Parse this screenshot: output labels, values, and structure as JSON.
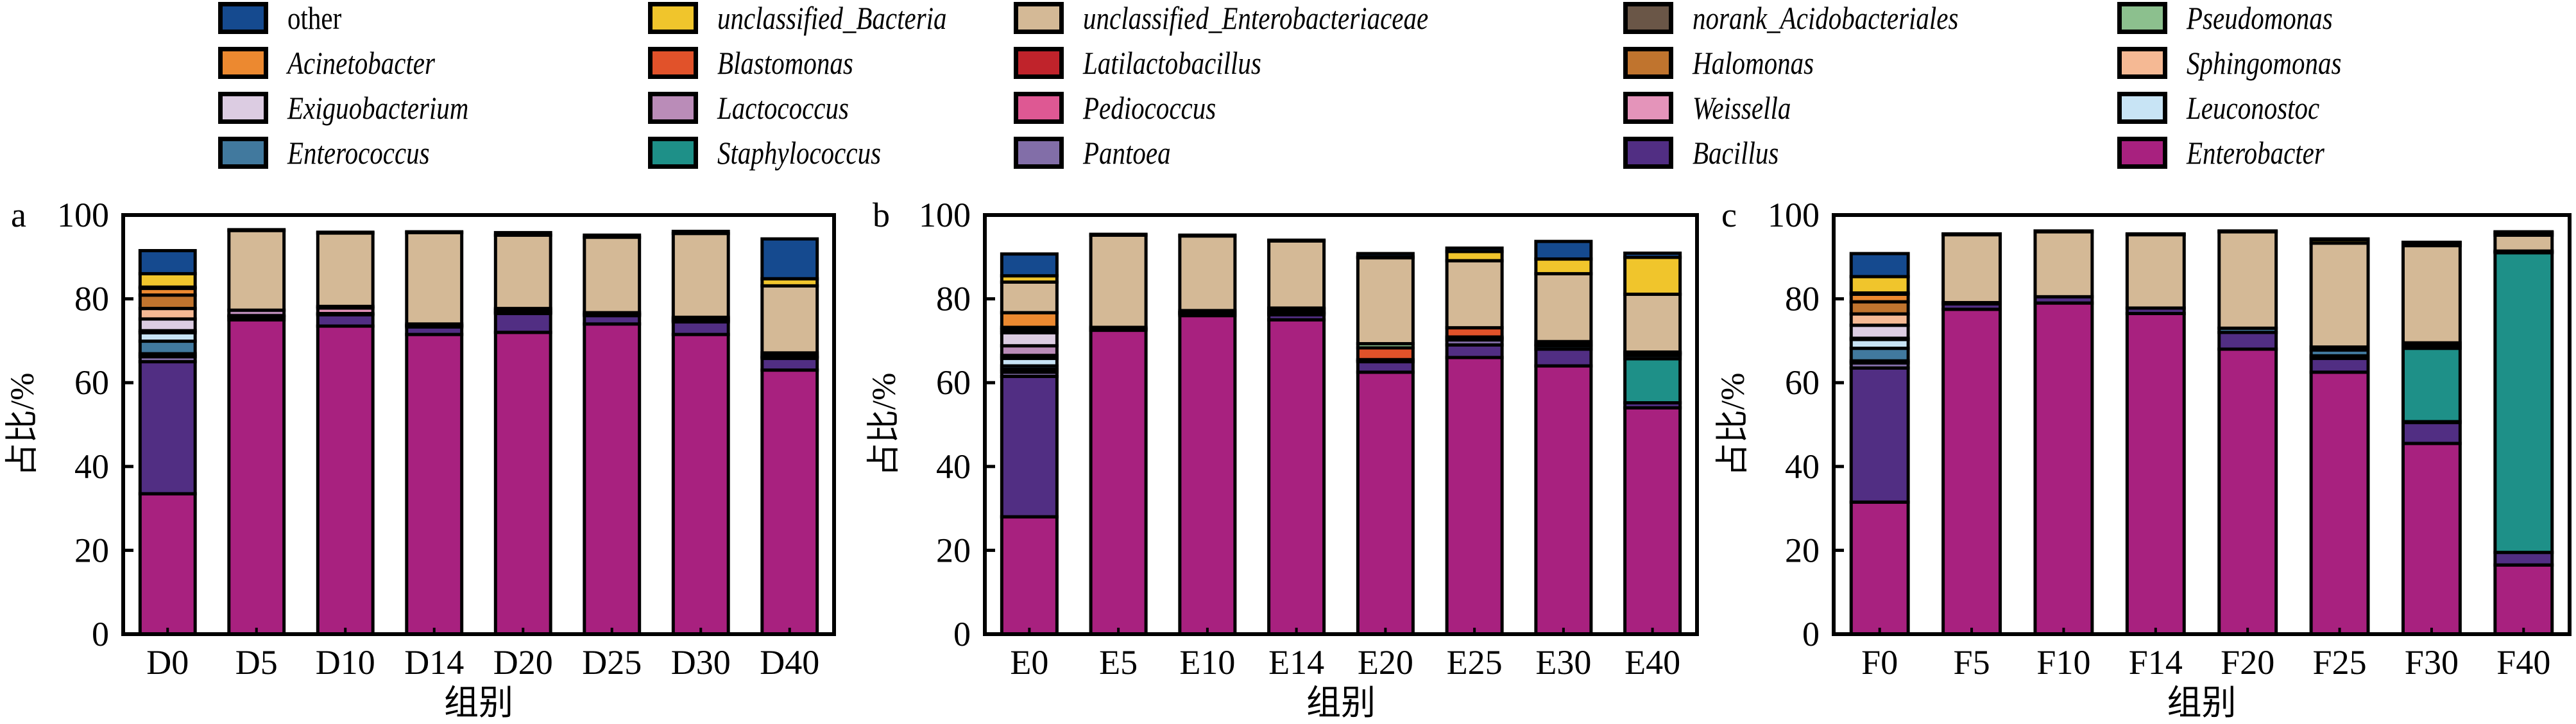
{
  "legend": {
    "items": [
      {
        "key": "other",
        "label": "other",
        "italic": false,
        "color": "#154A8F"
      },
      {
        "key": "unclassified_Bacteria",
        "label": "unclassified_Bacteria",
        "italic": true,
        "color": "#F0C52C"
      },
      {
        "key": "unclassified_Enterobacteriaceae",
        "label": "unclassified_Enterobacteriaceae",
        "italic": true,
        "color": "#D4B996"
      },
      {
        "key": "norank_Acidobacteriales",
        "label": "norank_Acidobacteriales",
        "italic": true,
        "color": "#6A5647"
      },
      {
        "key": "Pseudomonas",
        "label": "Pseudomonas",
        "italic": true,
        "color": "#8CC08E"
      },
      {
        "key": "Acinetobacter",
        "label": "Acinetobacter",
        "italic": true,
        "color": "#EC8930"
      },
      {
        "key": "Blastomonas",
        "label": "Blastomonas",
        "italic": true,
        "color": "#E1522A"
      },
      {
        "key": "Latilactobacillus",
        "label": "Latilactobacillus",
        "italic": true,
        "color": "#C0232B"
      },
      {
        "key": "Halomonas",
        "label": "Halomonas",
        "italic": true,
        "color": "#C0742E"
      },
      {
        "key": "Sphingomonas",
        "label": "Sphingomonas",
        "italic": true,
        "color": "#F5B994"
      },
      {
        "key": "Exiguobacterium",
        "label": "Exiguobacterium",
        "italic": true,
        "color": "#DCCCE2"
      },
      {
        "key": "Lactococcus",
        "label": "Lactococcus",
        "italic": true,
        "color": "#BA8CB8"
      },
      {
        "key": "Pediococcus",
        "label": "Pediococcus",
        "italic": true,
        "color": "#DE5893"
      },
      {
        "key": "Weissella",
        "label": "Weissella",
        "italic": true,
        "color": "#E494BA"
      },
      {
        "key": "Leuconostoc",
        "label": "Leuconostoc",
        "italic": true,
        "color": "#C8E4F5"
      },
      {
        "key": "Enterococcus",
        "label": "Enterococcus",
        "italic": true,
        "color": "#41799E"
      },
      {
        "key": "Staphylococcus",
        "label": "Staphylococcus",
        "italic": true,
        "color": "#1E9088"
      },
      {
        "key": "Pantoea",
        "label": "Pantoea",
        "italic": true,
        "color": "#826EA8"
      },
      {
        "key": "Bacillus",
        "label": "Bacillus",
        "italic": true,
        "color": "#512E83"
      },
      {
        "key": "Enterobacter",
        "label": "Enterobacter",
        "italic": true,
        "color": "#A8217F"
      }
    ]
  },
  "chart_data": [
    {
      "type": "bar",
      "stacked": true,
      "panel_label": "a",
      "title": "",
      "xlabel": "组别",
      "ylabel": "占比/%",
      "ylim": [
        0,
        100
      ],
      "yticks": [
        "0",
        "20",
        "40",
        "60",
        "80",
        "100"
      ],
      "categories": [
        "D0",
        "D5",
        "D10",
        "D14",
        "D20",
        "D25",
        "D30",
        "D40"
      ],
      "series": [
        {
          "name": "Enterobacter",
          "values": [
            33.5,
            75.0,
            73.5,
            71.5,
            72.0,
            74.0,
            71.5,
            63.0
          ]
        },
        {
          "name": "Bacillus",
          "values": [
            31.5,
            0.7,
            2.7,
            1.8,
            4.5,
            2.0,
            3.0,
            2.8
          ]
        },
        {
          "name": "Pantoea",
          "values": [
            1.2,
            0,
            0,
            0,
            0,
            0,
            0,
            0
          ]
        },
        {
          "name": "Staphylococcus",
          "values": [
            0.7,
            0,
            0,
            0,
            0,
            0,
            0,
            0
          ]
        },
        {
          "name": "Enterococcus",
          "values": [
            3.0,
            0.3,
            0.3,
            0.3,
            0.3,
            0.3,
            0.3,
            0.3
          ]
        },
        {
          "name": "Leuconostoc",
          "values": [
            2.0,
            0,
            0,
            0,
            0,
            0,
            0,
            0
          ]
        },
        {
          "name": "Weissella",
          "values": [
            0.5,
            0,
            1.3,
            0,
            0.5,
            0,
            0,
            0
          ]
        },
        {
          "name": "Exiguobacterium",
          "values": [
            2.8,
            0,
            0,
            0,
            0,
            0,
            0,
            0
          ]
        },
        {
          "name": "Lactococcus",
          "values": [
            0,
            1.3,
            0,
            0,
            0,
            0,
            0,
            0
          ]
        },
        {
          "name": "Pediococcus",
          "values": [
            0,
            0,
            0.4,
            0.4,
            0.4,
            0.4,
            0.4,
            0.3
          ]
        },
        {
          "name": "Latilactobacillus",
          "values": [
            0,
            0,
            0,
            0,
            0,
            0,
            0.4,
            0
          ]
        },
        {
          "name": "Sphingomonas",
          "values": [
            2.5,
            0,
            0,
            0,
            0,
            0,
            0,
            0
          ]
        },
        {
          "name": "Halomonas",
          "values": [
            3.2,
            0,
            0,
            0,
            0,
            0,
            0,
            0
          ]
        },
        {
          "name": "Acinetobacter",
          "values": [
            1.6,
            0,
            0,
            0,
            0,
            0,
            0,
            0
          ]
        },
        {
          "name": "norank_Acidobacteriales",
          "values": [
            0,
            0,
            0,
            0,
            0,
            0,
            0,
            0.7
          ]
        },
        {
          "name": "unclassified_Enterobacteriaceae",
          "values": [
            0.3,
            19.0,
            17.5,
            21.8,
            17.5,
            18.0,
            20.0,
            16.0
          ]
        },
        {
          "name": "unclassified_Bacteria",
          "values": [
            3.2,
            0,
            0,
            0,
            0,
            0,
            0,
            1.7
          ]
        },
        {
          "name": "other",
          "values": [
            5.5,
            0.2,
            0.2,
            0.2,
            0.6,
            0.5,
            0.5,
            9.5
          ]
        }
      ]
    },
    {
      "type": "bar",
      "stacked": true,
      "panel_label": "b",
      "title": "",
      "xlabel": "组别",
      "ylabel": "占比/%",
      "ylim": [
        0,
        100
      ],
      "yticks": [
        "0",
        "20",
        "40",
        "60",
        "80",
        "100"
      ],
      "categories": [
        "E0",
        "E5",
        "E10",
        "E14",
        "E20",
        "E25",
        "E30",
        "E40"
      ],
      "series": [
        {
          "name": "Enterobacter",
          "values": [
            28.0,
            72.5,
            76.0,
            75.0,
            62.5,
            66.0,
            64.0,
            54.0
          ]
        },
        {
          "name": "Bacillus",
          "values": [
            33.5,
            0.3,
            0.4,
            1.2,
            2.5,
            3.0,
            4.0,
            1.2
          ]
        },
        {
          "name": "Pantoea",
          "values": [
            1.0,
            0,
            0,
            0.4,
            0,
            1.2,
            0,
            0
          ]
        },
        {
          "name": "Staphylococcus",
          "values": [
            0.7,
            0,
            0,
            0,
            0,
            0,
            0,
            10.5
          ]
        },
        {
          "name": "Enterococcus",
          "values": [
            0.8,
            0,
            0.2,
            0.3,
            0.2,
            0.4,
            0.8,
            0.8
          ]
        },
        {
          "name": "Leuconostoc",
          "values": [
            1.8,
            0,
            0,
            0,
            0,
            0,
            0,
            0.3
          ]
        },
        {
          "name": "Weissella",
          "values": [
            0.7,
            0,
            0.2,
            0,
            0,
            0,
            0.3,
            0.3
          ]
        },
        {
          "name": "Lactococcus",
          "values": [
            2.3,
            0,
            0,
            0,
            0,
            0,
            0,
            0
          ]
        },
        {
          "name": "Exiguobacterium",
          "values": [
            3.1,
            0,
            0,
            0,
            0,
            0,
            0,
            0
          ]
        },
        {
          "name": "Pediococcus",
          "values": [
            0,
            0.4,
            0.4,
            0.7,
            0.3,
            0.3,
            0.7,
            0.2
          ]
        },
        {
          "name": "Sphingomonas",
          "values": [
            0.7,
            0,
            0,
            0,
            0,
            0,
            0,
            0
          ]
        },
        {
          "name": "Halomonas",
          "values": [
            0.6,
            0,
            0,
            0.2,
            0,
            0,
            0,
            0
          ]
        },
        {
          "name": "Blastomonas",
          "values": [
            0,
            0,
            0,
            0,
            2.8,
            2.2,
            0,
            0
          ]
        },
        {
          "name": "Pseudomonas",
          "values": [
            0,
            0,
            0,
            0,
            1.0,
            0,
            0,
            0
          ]
        },
        {
          "name": "Acinetobacter",
          "values": [
            3.5,
            0,
            0,
            0,
            0,
            0,
            0,
            0
          ]
        },
        {
          "name": "unclassified_Enterobacteriaceae",
          "values": [
            7.3,
            22.0,
            17.8,
            16.0,
            20.5,
            16.0,
            16.2,
            13.8
          ]
        },
        {
          "name": "unclassified_Bacteria",
          "values": [
            1.5,
            0,
            0,
            0,
            0.2,
            2.2,
            3.5,
            8.8
          ]
        },
        {
          "name": "other",
          "values": [
            5.2,
            0.2,
            0.2,
            0.2,
            0.8,
            0.8,
            4.2,
            1.0
          ]
        }
      ]
    },
    {
      "type": "bar",
      "stacked": true,
      "panel_label": "c",
      "title": "",
      "xlabel": "组别",
      "ylabel": "占比/%",
      "ylim": [
        0,
        100
      ],
      "yticks": [
        "0",
        "20",
        "40",
        "60",
        "80",
        "100"
      ],
      "categories": [
        "F0",
        "F5",
        "F10",
        "F14",
        "F20",
        "F25",
        "F30",
        "F40"
      ],
      "series": [
        {
          "name": "Enterobacter",
          "values": [
            31.5,
            77.5,
            79.0,
            76.5,
            68.0,
            62.5,
            45.5,
            16.5
          ]
        },
        {
          "name": "Bacillus",
          "values": [
            32.0,
            1.3,
            1.5,
            1.3,
            4.0,
            3.3,
            5.0,
            3.0
          ]
        },
        {
          "name": "Pantoea",
          "values": [
            1.2,
            0,
            0,
            0,
            0,
            0.6,
            0.2,
            0
          ]
        },
        {
          "name": "Staphylococcus",
          "values": [
            0.5,
            0,
            0,
            0,
            0,
            0,
            17.5,
            71.5
          ]
        },
        {
          "name": "Enterococcus",
          "values": [
            3.0,
            0.3,
            0,
            0,
            1.0,
            1.4,
            0.6,
            0.2
          ]
        },
        {
          "name": "Leuconostoc",
          "values": [
            2.1,
            0,
            0,
            0,
            0,
            0,
            0,
            0
          ]
        },
        {
          "name": "Weissella",
          "values": [
            0.3,
            0,
            0,
            0,
            0,
            0,
            0,
            0.2
          ]
        },
        {
          "name": "Exiguobacterium",
          "values": [
            3.1,
            0,
            0,
            0,
            0,
            0,
            0,
            0
          ]
        },
        {
          "name": "Pediococcus",
          "values": [
            0,
            0,
            0,
            0,
            0,
            0.7,
            0.7,
            0
          ]
        },
        {
          "name": "Sphingomonas",
          "values": [
            2.7,
            0,
            0,
            0,
            0,
            0,
            0,
            0
          ]
        },
        {
          "name": "Halomonas",
          "values": [
            2.9,
            0,
            0,
            0,
            0,
            0,
            0,
            0
          ]
        },
        {
          "name": "Acinetobacter",
          "values": [
            1.8,
            0,
            0,
            0,
            0,
            0,
            0,
            0
          ]
        },
        {
          "name": "unclassified_Enterobacteriaceae",
          "values": [
            0.3,
            16.2,
            15.5,
            17.5,
            23.0,
            24.8,
            23.2,
            3.8
          ]
        },
        {
          "name": "unclassified_Bacteria",
          "values": [
            3.9,
            0,
            0,
            0,
            0,
            0.8,
            0.6,
            0.6
          ]
        },
        {
          "name": "other",
          "values": [
            5.5,
            0.2,
            0.2,
            0.2,
            0.2,
            0.2,
            0.2,
            0.2
          ]
        }
      ]
    }
  ]
}
